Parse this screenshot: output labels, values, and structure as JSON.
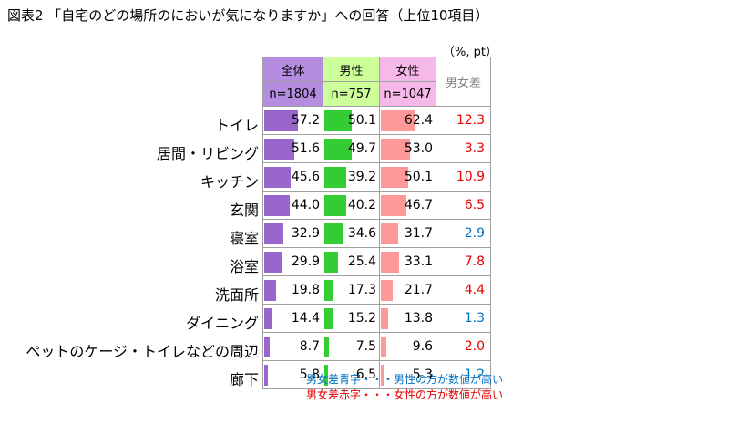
{
  "title": "図表2 「自宅のどの場所のにおいが気になりますか」への回答（上位10項目）",
  "unit": "（%, pt）",
  "chart_data": {
    "type": "table",
    "columns": [
      {
        "name": "全体",
        "n": "n=1804",
        "color": "#9966cc",
        "header_bg": "#b58de0"
      },
      {
        "name": "男性",
        "n": "n=757",
        "color": "#33cc33",
        "header_bg": "#ccff99"
      },
      {
        "name": "女性",
        "n": "n=1047",
        "color": "#ff9999",
        "header_bg": "#f5b8e8"
      }
    ],
    "diff_header": "男女差",
    "xlim": [
      0,
      100
    ],
    "categories": [
      "トイレ",
      "居間・リビング",
      "キッチン",
      "玄関",
      "寝室",
      "浴室",
      "洗面所",
      "ダイニング",
      "ペットのケージ・トイレなどの周辺",
      "廊下"
    ],
    "series": [
      {
        "name": "全体",
        "values": [
          57.2,
          51.6,
          45.6,
          44.0,
          32.9,
          29.9,
          19.8,
          14.4,
          8.7,
          5.8
        ]
      },
      {
        "name": "男性",
        "values": [
          50.1,
          49.7,
          39.2,
          40.2,
          34.6,
          25.4,
          17.3,
          15.2,
          7.5,
          6.5
        ]
      },
      {
        "name": "女性",
        "values": [
          62.4,
          53.0,
          50.1,
          46.7,
          31.7,
          33.1,
          21.7,
          13.8,
          9.6,
          5.3
        ]
      }
    ],
    "diff": [
      "12.3",
      "3.3",
      "10.9",
      "6.5",
      "2.9",
      "7.8",
      "4.4",
      "1.3",
      "2.0",
      "1.2"
    ],
    "diff_colors": [
      "#e60000",
      "#e60000",
      "#e60000",
      "#e60000",
      "#0070c0",
      "#e60000",
      "#e60000",
      "#0070c0",
      "#e60000",
      "#0070c0"
    ]
  },
  "notes": {
    "blue": "男女差青字・・・男性の方が数値が高い",
    "red": "男女差赤字・・・女性の方が数値が高い",
    "blue_color": "#0070c0",
    "red_color": "#e60000"
  }
}
